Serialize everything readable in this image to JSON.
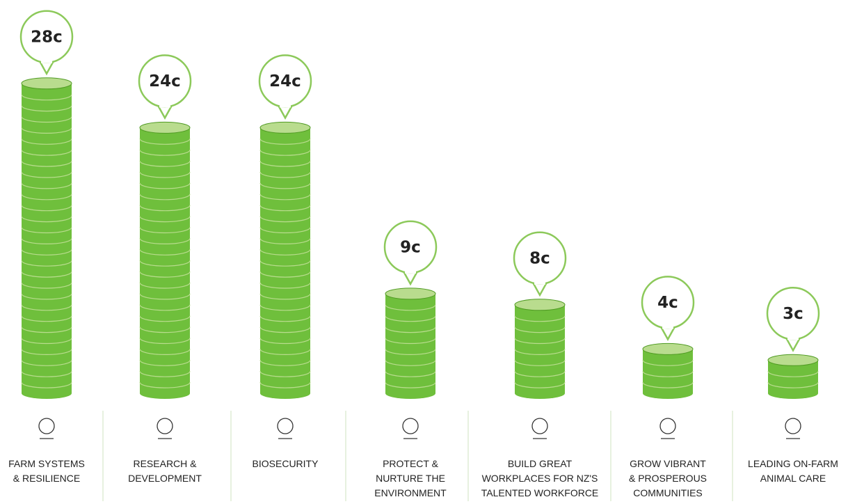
{
  "chart_data": {
    "type": "coin-stack",
    "categories": [
      "FARM SYSTEMS\n& RESILIENCE",
      "RESEARCH &\nDEVELOPMENT",
      "BIOSECURITY",
      "PROTECT &\nNURTURE THE\nENVIRONMENT",
      "BUILD GREAT\nWORKPLACES FOR NZ'S\nTALENTED WORKFORCE",
      "GROW VIBRANT\n& PROSPEROUS\nCOMMUNITIES",
      "LEADING ON-FARM\nANIMAL CARE"
    ],
    "values": [
      28,
      24,
      24,
      9,
      8,
      4,
      3
    ],
    "value_labels": [
      "28c",
      "24c",
      "24c",
      "9c",
      "8c",
      "4c",
      "3c"
    ],
    "color": "#6fbf3c"
  }
}
